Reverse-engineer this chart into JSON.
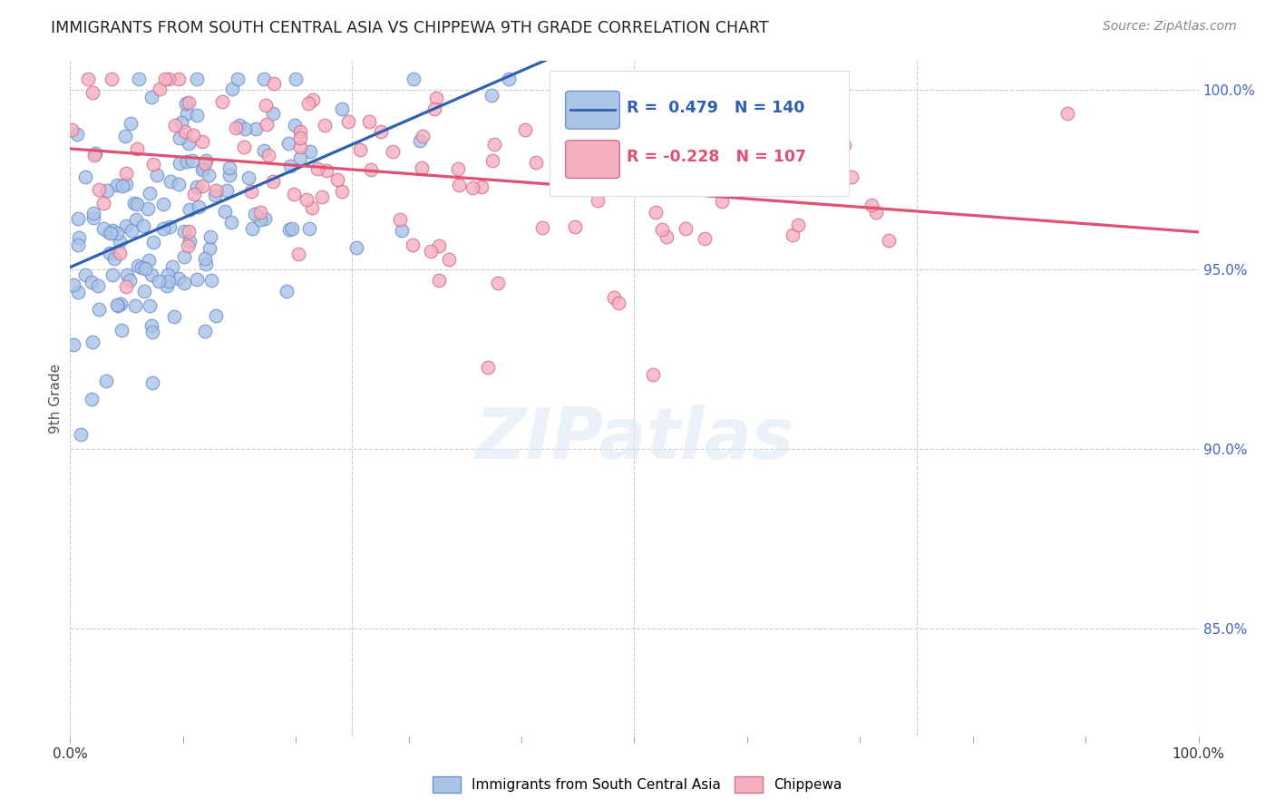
{
  "title": "IMMIGRANTS FROM SOUTH CENTRAL ASIA VS CHIPPEWA 9TH GRADE CORRELATION CHART",
  "source": "Source: ZipAtlas.com",
  "ylabel": "9th Grade",
  "watermark": "ZIPatlas",
  "legend_blue_label": "Immigrants from South Central Asia",
  "legend_pink_label": "Chippewa",
  "blue_R": 0.479,
  "blue_N": 140,
  "pink_R": -0.228,
  "pink_N": 107,
  "blue_color": "#aac4e8",
  "blue_line_color": "#3060b0",
  "pink_color": "#f5b0c0",
  "pink_line_color": "#e05070",
  "blue_marker_edge": "#7090cc",
  "pink_marker_edge": "#d07090",
  "bg_color": "#ffffff",
  "grid_color": "#cccccc",
  "title_color": "#222222",
  "right_axis_color": "#4466bb",
  "seed": 42,
  "xlim": [
    0.0,
    1.0
  ],
  "ylim": [
    0.82,
    1.008
  ],
  "y_ticks": [
    0.85,
    0.9,
    0.95,
    1.0
  ],
  "y_tick_labels": [
    "85.0%",
    "90.0%",
    "95.0%",
    "100.0%"
  ]
}
